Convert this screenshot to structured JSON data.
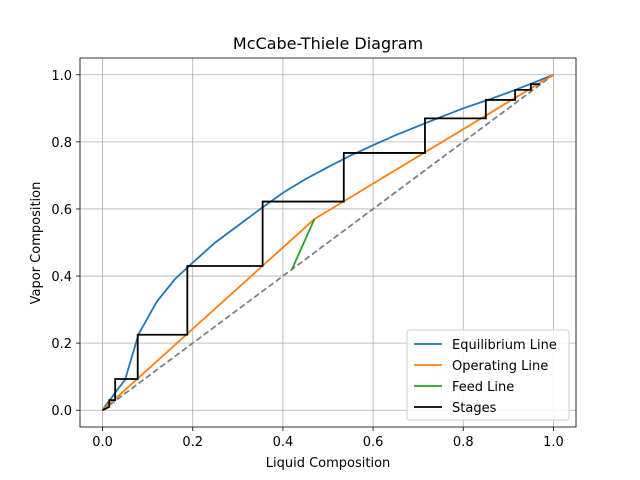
{
  "chart_data": {
    "type": "line",
    "title": "McCabe-Thiele Diagram",
    "xlabel": "Liquid Composition",
    "ylabel": "Vapor Composition",
    "xlim": [
      -0.05,
      1.05
    ],
    "ylim": [
      -0.05,
      1.05
    ],
    "xticks": [
      0.0,
      0.2,
      0.4,
      0.6,
      0.8,
      1.0
    ],
    "yticks": [
      0.0,
      0.2,
      0.4,
      0.6,
      0.8,
      1.0
    ],
    "xtick_labels": [
      "0.0",
      "0.2",
      "0.4",
      "0.6",
      "0.8",
      "1.0"
    ],
    "ytick_labels": [
      "0.0",
      "0.2",
      "0.4",
      "0.6",
      "0.8",
      "1.0"
    ],
    "grid": true,
    "legend_position": "lower-right",
    "series": [
      {
        "name": "Equilibrium Line",
        "color": "#1f77b4",
        "x": [
          0.0,
          0.01,
          0.02,
          0.03,
          0.05,
          0.08,
          0.12,
          0.16,
          0.2,
          0.25,
          0.3,
          0.35,
          0.4,
          0.45,
          0.5,
          0.55,
          0.6,
          0.65,
          0.7,
          0.75,
          0.8,
          0.85,
          0.9,
          0.95,
          1.0
        ],
        "y": [
          0.0,
          0.02,
          0.037,
          0.056,
          0.091,
          0.227,
          0.323,
          0.39,
          0.44,
          0.5,
          0.55,
          0.6,
          0.648,
          0.689,
          0.725,
          0.759,
          0.79,
          0.82,
          0.847,
          0.874,
          0.9,
          0.923,
          0.947,
          0.973,
          1.0
        ]
      },
      {
        "name": "Operating Line",
        "color": "#ff7f0e",
        "x": [
          0.0,
          0.47,
          1.0
        ],
        "y": [
          0.0,
          0.57,
          1.0
        ]
      },
      {
        "name": "Feed Line",
        "color": "#2ca02c",
        "x": [
          0.42,
          0.47
        ],
        "y": [
          0.42,
          0.57
        ]
      },
      {
        "name": "Stages",
        "color": "#000000",
        "x": [
          0.0,
          0.015,
          0.015,
          0.028,
          0.028,
          0.078,
          0.078,
          0.188,
          0.188,
          0.355,
          0.355,
          0.535,
          0.535,
          0.715,
          0.715,
          0.85,
          0.85,
          0.915,
          0.915,
          0.95,
          0.95,
          0.97
        ],
        "y": [
          0.0,
          0.01,
          0.03,
          0.03,
          0.093,
          0.093,
          0.225,
          0.225,
          0.43,
          0.43,
          0.622,
          0.622,
          0.767,
          0.767,
          0.87,
          0.87,
          0.925,
          0.925,
          0.955,
          0.955,
          0.972,
          0.972
        ]
      }
    ],
    "diagonal": {
      "color": "#808080",
      "style": "dashed",
      "x": [
        0.0,
        1.0
      ],
      "y": [
        0.0,
        1.0
      ]
    }
  }
}
